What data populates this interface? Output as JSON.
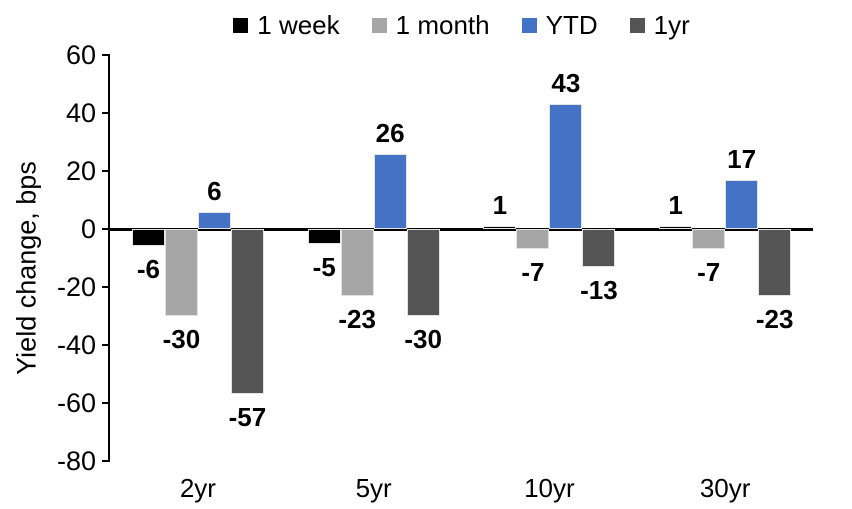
{
  "chart_data": {
    "type": "bar",
    "title": "",
    "categories": [
      "2yr",
      "5yr",
      "10yr",
      "30yr"
    ],
    "series": [
      {
        "name": "1 week",
        "color": "#000000",
        "values": [
          -6,
          -5,
          1,
          1
        ]
      },
      {
        "name": "1 month",
        "color": "#A6A6A6",
        "values": [
          -30,
          -23,
          -7,
          -7
        ]
      },
      {
        "name": "YTD",
        "color": "#4472C4",
        "values": [
          6,
          26,
          43,
          17
        ]
      },
      {
        "name": "1yr",
        "color": "#545454",
        "values": [
          -57,
          -30,
          -13,
          -23
        ]
      }
    ],
    "xlabel": "",
    "ylabel": "Yield change, bps",
    "ylim": [
      -80,
      60
    ],
    "ytick_step": 20,
    "yticks": [
      60,
      40,
      20,
      0,
      -20,
      -40,
      -60,
      -80
    ],
    "legend_position": "top",
    "grid": false,
    "data_labels": true,
    "axis_color": "#000000",
    "background_color": "#FFFFFF"
  }
}
